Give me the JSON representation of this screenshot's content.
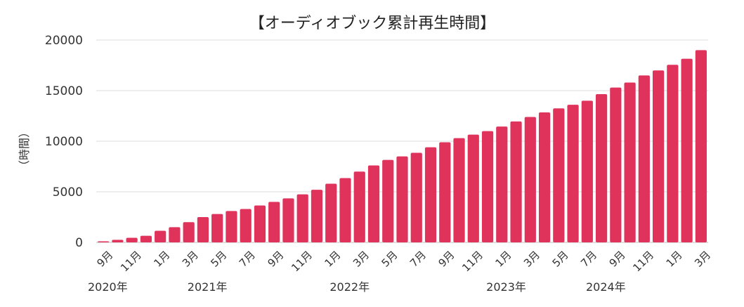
{
  "chart_data": {
    "type": "bar",
    "title": "【オーディオブック累計再生時間】",
    "ylabel": "時間",
    "ylabel_display": "（時間）",
    "ylim": [
      0,
      20000
    ],
    "yticks": [
      0,
      5000,
      10000,
      15000,
      20000
    ],
    "grid": true,
    "bar_color": "#E0335C",
    "categories": [
      "2020年9月",
      "2020年10月",
      "2020年11月",
      "2020年12月",
      "2021年1月",
      "2021年2月",
      "2021年3月",
      "2021年4月",
      "2021年5月",
      "2021年6月",
      "2021年7月",
      "2021年8月",
      "2021年9月",
      "2021年10月",
      "2021年11月",
      "2021年12月",
      "2022年1月",
      "2022年2月",
      "2022年3月",
      "2022年4月",
      "2022年5月",
      "2022年6月",
      "2022年7月",
      "2022年8月",
      "2022年9月",
      "2022年10月",
      "2022年11月",
      "2022年12月",
      "2023年1月",
      "2023年2月",
      "2023年3月",
      "2023年4月",
      "2023年5月",
      "2023年6月",
      "2023年7月",
      "2023年8月",
      "2023年9月",
      "2023年10月",
      "2023年11月",
      "2023年12月",
      "2024年1月",
      "2024年2月",
      "2024年3月"
    ],
    "values": [
      100,
      250,
      450,
      650,
      1150,
      1500,
      2000,
      2500,
      2800,
      3100,
      3300,
      3650,
      4000,
      4350,
      4750,
      5200,
      5800,
      6350,
      7000,
      7600,
      8150,
      8500,
      8850,
      9400,
      9900,
      10300,
      10650,
      11000,
      11450,
      11950,
      12400,
      12850,
      13250,
      13600,
      14000,
      14650,
      15300,
      15800,
      16500,
      17000,
      17550,
      18150,
      19000
    ],
    "x_tick_labels": [
      {
        "index": 0,
        "label": "9月"
      },
      {
        "index": 2,
        "label": "11月"
      },
      {
        "index": 4,
        "label": "1月"
      },
      {
        "index": 6,
        "label": "3月"
      },
      {
        "index": 8,
        "label": "5月"
      },
      {
        "index": 10,
        "label": "7月"
      },
      {
        "index": 12,
        "label": "9月"
      },
      {
        "index": 14,
        "label": "11月"
      },
      {
        "index": 16,
        "label": "1月"
      },
      {
        "index": 18,
        "label": "3月"
      },
      {
        "index": 20,
        "label": "5月"
      },
      {
        "index": 22,
        "label": "7月"
      },
      {
        "index": 24,
        "label": "9月"
      },
      {
        "index": 26,
        "label": "11月"
      },
      {
        "index": 28,
        "label": "1月"
      },
      {
        "index": 30,
        "label": "3月"
      },
      {
        "index": 32,
        "label": "5月"
      },
      {
        "index": 34,
        "label": "7月"
      },
      {
        "index": 36,
        "label": "9月"
      },
      {
        "index": 38,
        "label": "11月"
      },
      {
        "index": 40,
        "label": "1月"
      },
      {
        "index": 42,
        "label": "3月"
      }
    ],
    "year_labels": [
      {
        "index": 0,
        "label": "2020年"
      },
      {
        "index": 7,
        "label": "2021年"
      },
      {
        "index": 17,
        "label": "2022年"
      },
      {
        "index": 28,
        "label": "2023年"
      },
      {
        "index": 35,
        "label": "2024年"
      }
    ]
  }
}
